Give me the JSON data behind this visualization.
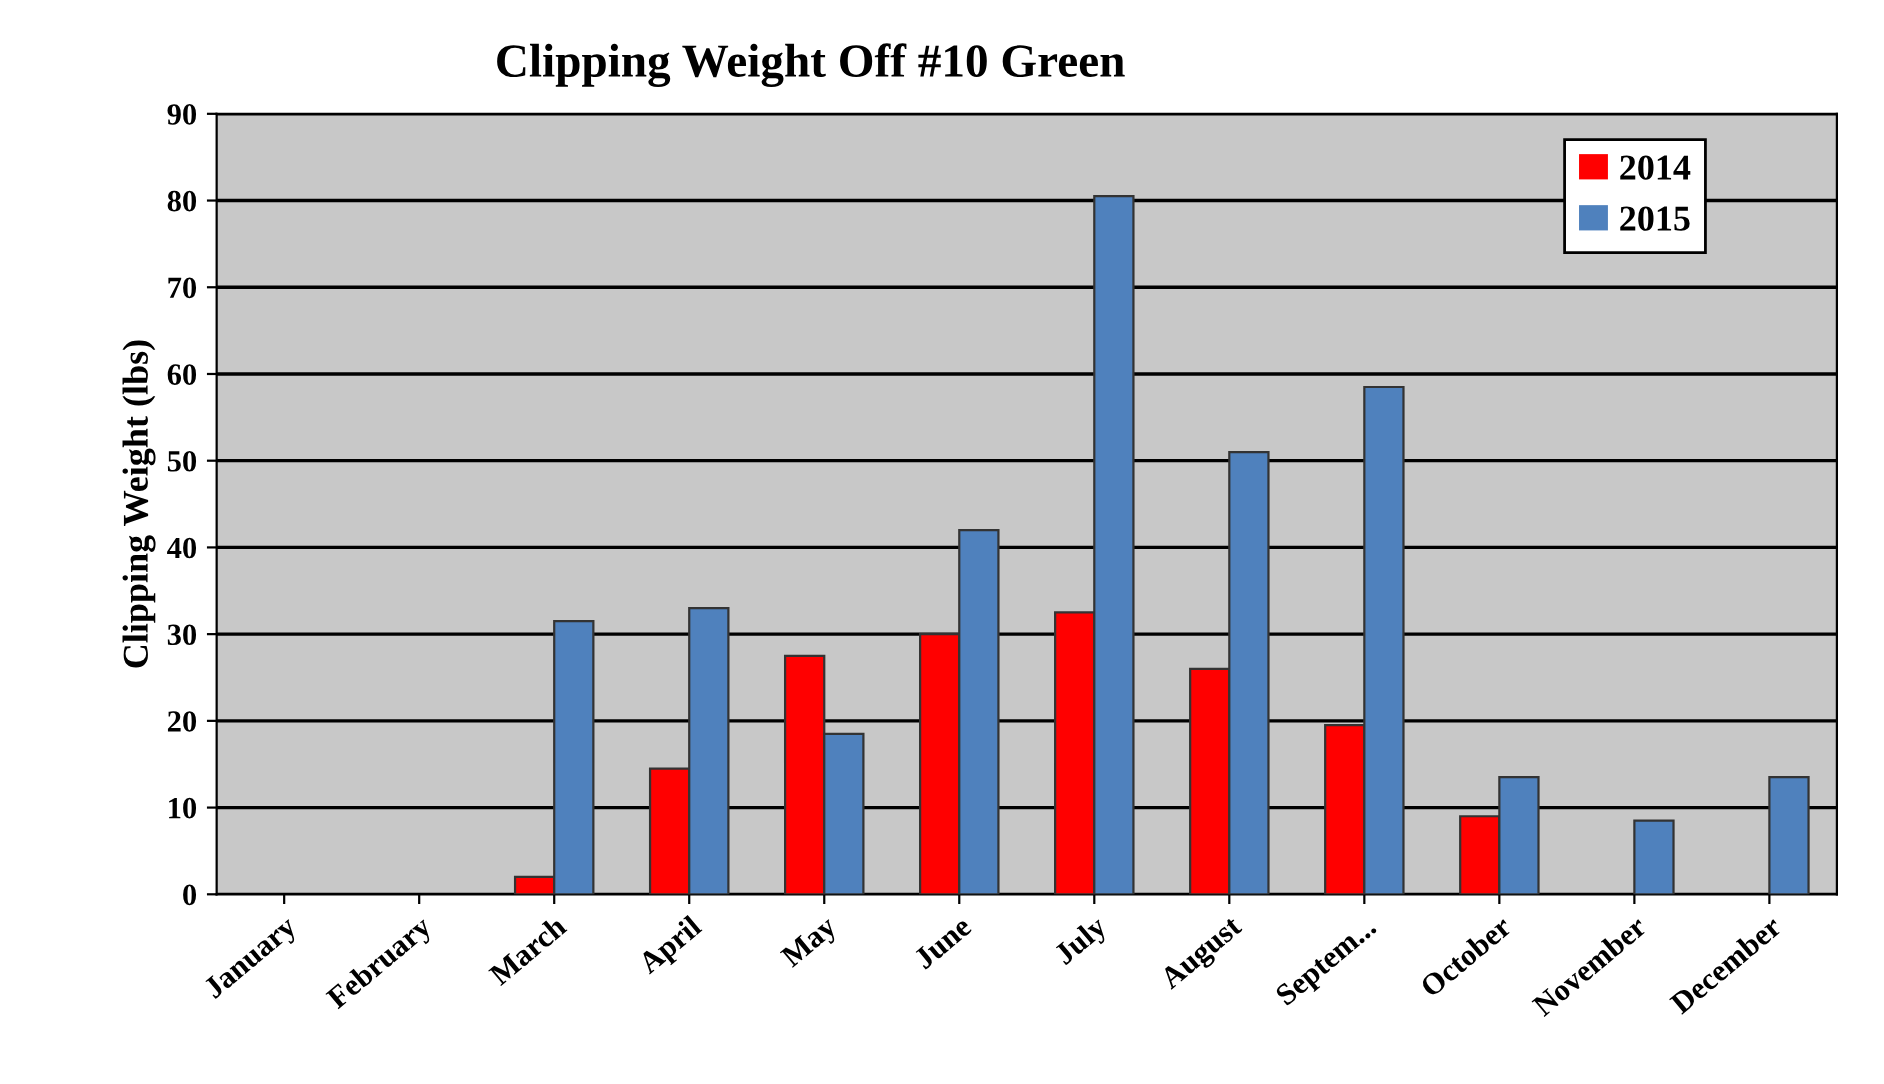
{
  "chart_data": {
    "type": "bar",
    "title": "Clipping Weight Off #10 Green",
    "ylabel": "Clipping Weight (lbs)",
    "categories": [
      "January",
      "February",
      "March",
      "April",
      "May",
      "June",
      "July",
      "August",
      "Septem...",
      "October",
      "November",
      "December"
    ],
    "series": [
      {
        "name": "2014",
        "color": "#ff0000",
        "values": [
          0,
          0,
          2,
          14.5,
          27.5,
          30,
          32.5,
          26,
          19.5,
          9,
          0,
          0
        ]
      },
      {
        "name": "2015",
        "color": "#4f81bd",
        "values": [
          0,
          0,
          31.5,
          33,
          18.5,
          42,
          80.5,
          51,
          58.5,
          13.5,
          8.5,
          13.5
        ]
      }
    ],
    "ylim": [
      0,
      90
    ],
    "yticks": [
      0,
      10,
      20,
      30,
      40,
      50,
      60,
      70,
      80,
      90
    ],
    "grid": "y",
    "legend": "top right"
  }
}
